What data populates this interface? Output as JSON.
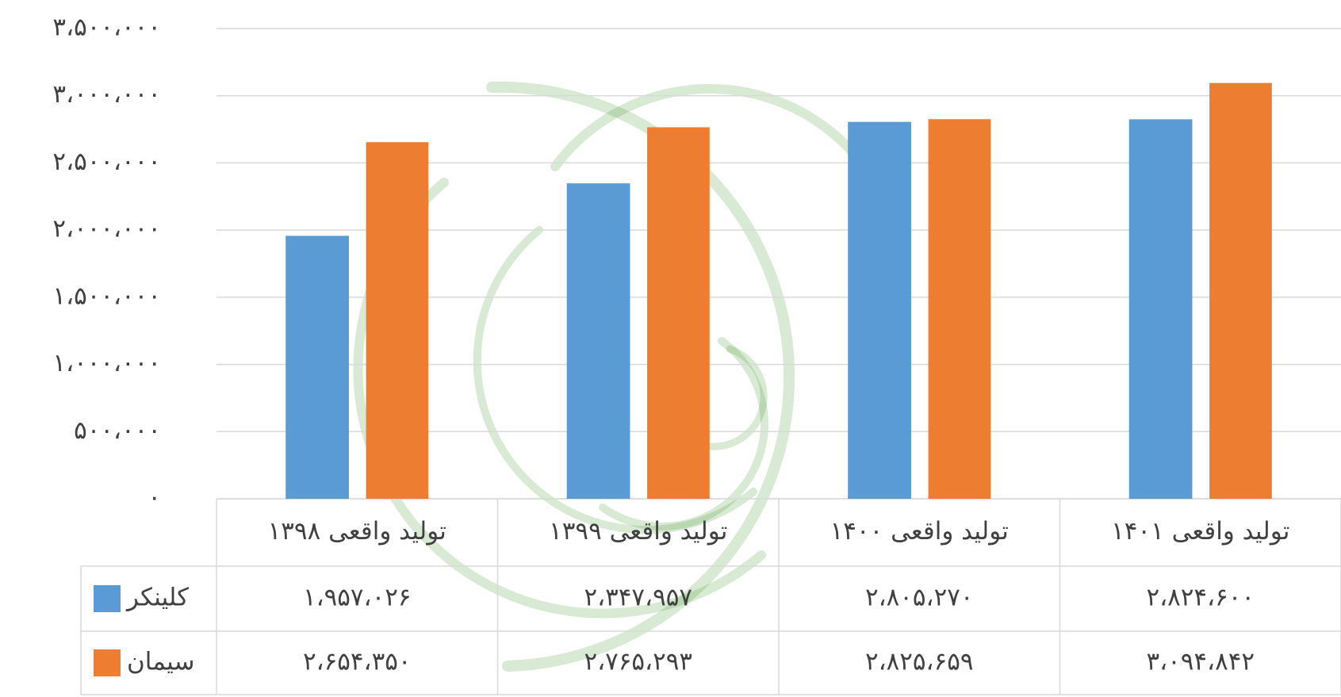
{
  "chart_data": {
    "type": "bar",
    "categories": [
      "تولید واقعی ۱۳۹۸",
      "تولید واقعی ۱۳۹۹",
      "تولید واقعی ۱۴۰۰",
      "تولید واقعی ۱۴۰۱"
    ],
    "series": [
      {
        "name": "کلینکر",
        "color": "#5b9bd5",
        "values": [
          1957026,
          2347957,
          2805270,
          2824600
        ],
        "value_labels": [
          "۱،۹۵۷،۰۲۶",
          "۲،۳۴۷،۹۵۷",
          "۲،۸۰۵،۲۷۰",
          "۲،۸۲۴،۶۰۰"
        ]
      },
      {
        "name": "سیمان",
        "color": "#ed7d31",
        "values": [
          2654350,
          2765293,
          2825659,
          3094842
        ],
        "value_labels": [
          "۲،۶۵۴،۳۵۰",
          "۲،۷۶۵،۲۹۳",
          "۲،۸۲۵،۶۵۹",
          "۳،۰۹۴،۸۴۲"
        ]
      }
    ],
    "ylim": [
      0,
      3500000
    ],
    "yticks": [
      {
        "value": 0,
        "label": "۰"
      },
      {
        "value": 500000,
        "label": "۵۰۰،۰۰۰"
      },
      {
        "value": 1000000,
        "label": "۱،۰۰۰،۰۰۰"
      },
      {
        "value": 1500000,
        "label": "۱،۵۰۰،۰۰۰"
      },
      {
        "value": 2000000,
        "label": "۲،۰۰۰،۰۰۰"
      },
      {
        "value": 2500000,
        "label": "۲،۵۰۰،۰۰۰"
      },
      {
        "value": 3000000,
        "label": "۳،۰۰۰،۰۰۰"
      },
      {
        "value": 3500000,
        "label": "۳،۵۰۰،۰۰۰"
      }
    ],
    "grid": true
  }
}
